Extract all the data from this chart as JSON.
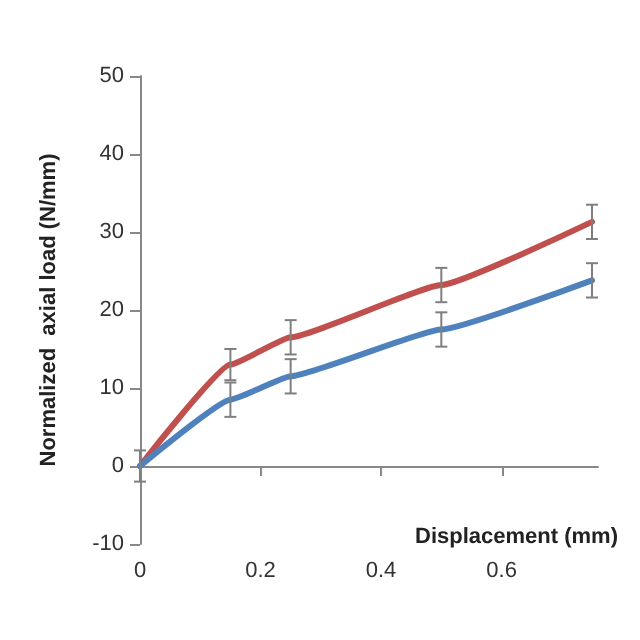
{
  "chart_data": {
    "type": "line",
    "xlabel": "Displacement (mm)",
    "ylabel": "Normalized  axial load (N/mm)",
    "x": [
      0,
      0.15,
      0.25,
      0.5,
      0.75
    ],
    "series": [
      {
        "color": "#c0504d",
        "values": [
          0,
          13,
          16.5,
          23.2,
          31.3
        ],
        "errors": [
          2,
          2,
          2.2,
          2.2,
          2.2
        ]
      },
      {
        "color": "#4f81bd",
        "values": [
          0,
          8.5,
          11.5,
          17.5,
          23.8
        ],
        "errors": [
          null,
          2.2,
          2.2,
          2.2,
          2.2
        ]
      }
    ],
    "xlim": [
      0,
      0.76
    ],
    "xticks": [
      0,
      0.2,
      0.4,
      0.6
    ],
    "ylim": [
      -10,
      50
    ],
    "yticks": [
      -10,
      0,
      10,
      20,
      30,
      40,
      50
    ],
    "marker": "none",
    "line_style": "solid"
  }
}
